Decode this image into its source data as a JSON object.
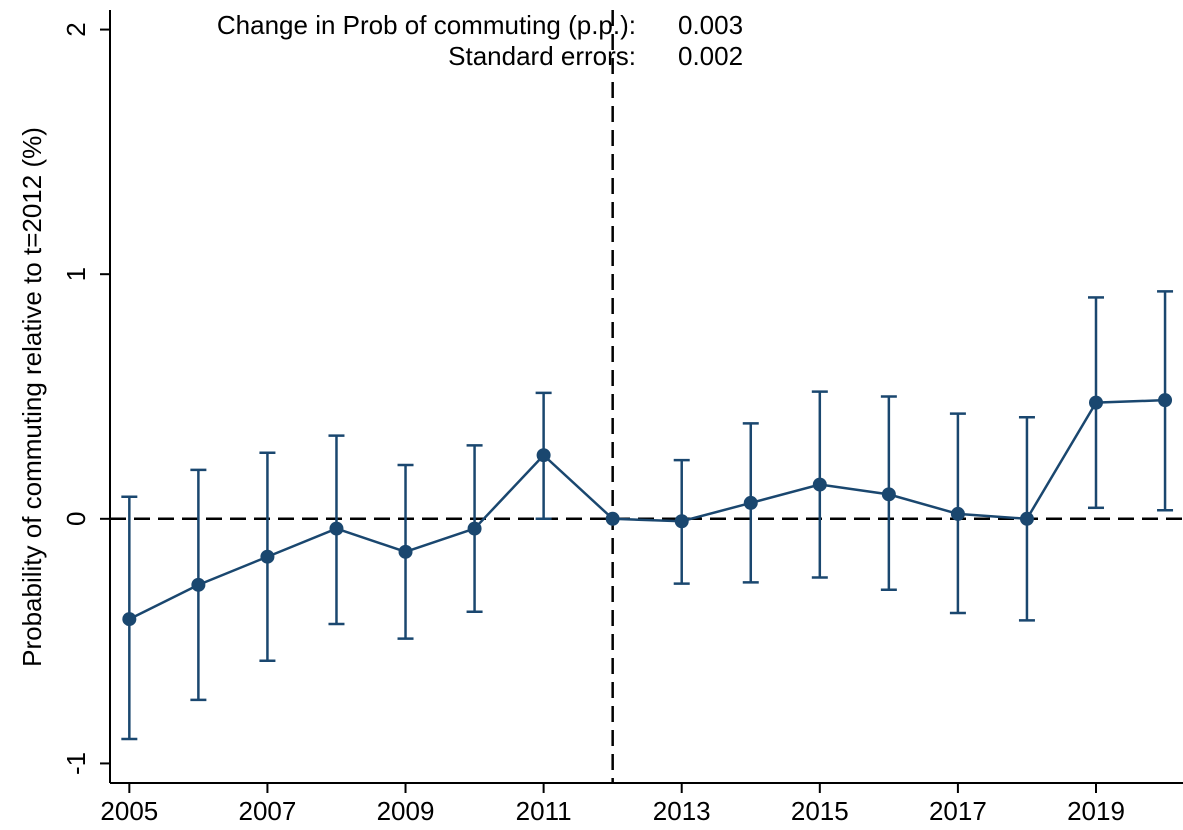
{
  "chart_data": {
    "type": "line",
    "y_label": "Probability of commuting relative to t=2012 (%)",
    "annotations": [
      {
        "label": "Change in Prob of commuting (p.p.):",
        "value": "0.003"
      },
      {
        "label": "Standard errors:",
        "value": "0.002"
      }
    ],
    "x": [
      2005,
      2006,
      2007,
      2008,
      2009,
      2010,
      2011,
      2012,
      2013,
      2014,
      2015,
      2016,
      2017,
      2018,
      2019,
      2020
    ],
    "series": [
      {
        "color": "#1a476f",
        "values": [
          -0.41,
          -0.27,
          -0.155,
          -0.04,
          -0.135,
          -0.04,
          0.26,
          0,
          -0.01,
          0.065,
          0.14,
          0.1,
          0.02,
          0,
          0.475,
          0.485
        ],
        "lower": [
          -0.9,
          -0.74,
          -0.58,
          -0.43,
          -0.49,
          -0.38,
          0,
          null,
          -0.265,
          -0.26,
          -0.24,
          -0.29,
          -0.385,
          -0.415,
          0.045,
          0.035
        ],
        "upper": [
          0.09,
          0.2,
          0.27,
          0.34,
          0.22,
          0.3,
          0.515,
          null,
          0.24,
          0.39,
          0.52,
          0.5,
          0.43,
          0.415,
          0.905,
          0.93
        ]
      }
    ],
    "xlim": [
      2004.72,
      2020.26
    ],
    "xticks": [
      2005,
      2007,
      2009,
      2011,
      2013,
      2015,
      2017,
      2019
    ],
    "ylim": [
      -1.08,
      2.08
    ],
    "yticks": [
      -1,
      0,
      1,
      2
    ],
    "vline": 2012,
    "hline": 0,
    "grid": false
  }
}
